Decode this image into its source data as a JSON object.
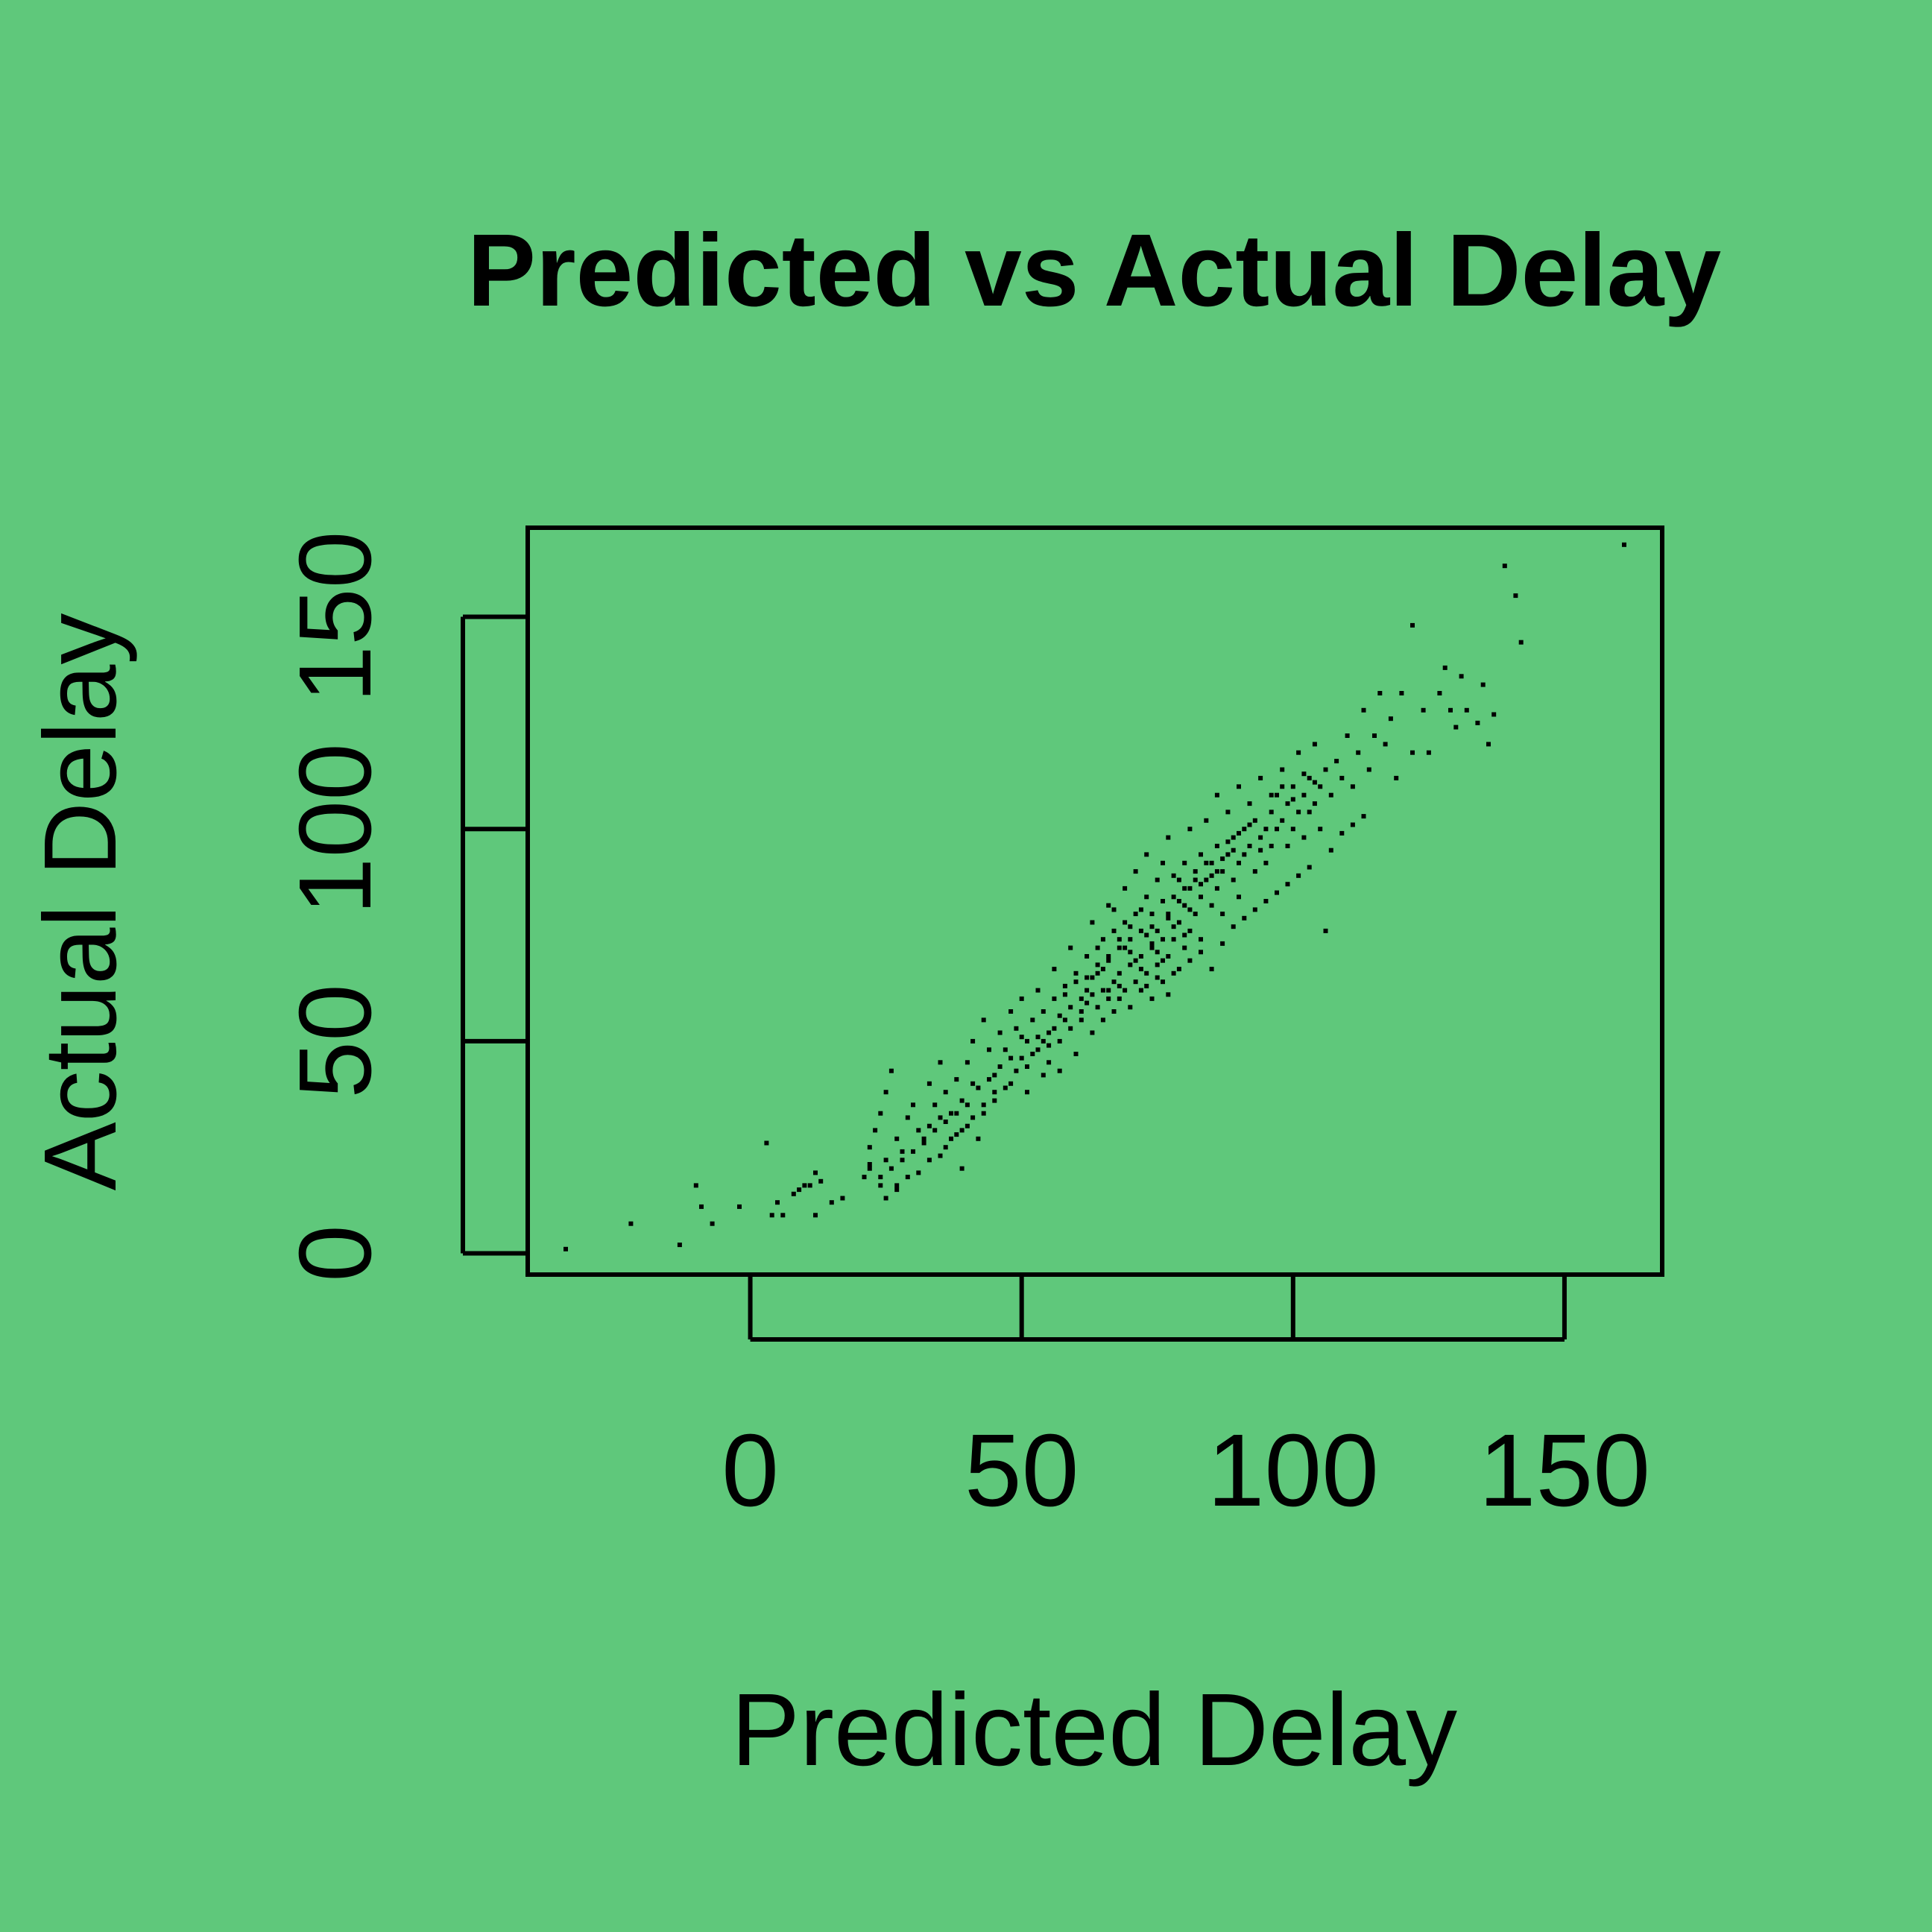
{
  "chart_data": {
    "type": "scatter",
    "title": "Predicted vs Actual Delay",
    "xlabel": "Predicted Delay",
    "ylabel": "Actual Delay",
    "xlim": [
      -41,
      168
    ],
    "ylim": [
      -5,
      171
    ],
    "xticks": [
      0,
      50,
      100,
      150
    ],
    "yticks": [
      0,
      50,
      100,
      150
    ],
    "xtick_labels": [
      "0",
      "50",
      "100",
      "150"
    ],
    "ytick_labels": [
      "0",
      "50",
      "100",
      "150"
    ],
    "grid": false,
    "legend": "none",
    "marker_color": "#000000",
    "background_color": "#5fc87b",
    "points": [
      [
        -34,
        1
      ],
      [
        -22,
        7
      ],
      [
        -13,
        2
      ],
      [
        -10,
        16
      ],
      [
        -9,
        11
      ],
      [
        -7,
        7
      ],
      [
        -2,
        11
      ],
      [
        3,
        26
      ],
      [
        4,
        9
      ],
      [
        5,
        12
      ],
      [
        6,
        9
      ],
      [
        8,
        14
      ],
      [
        9,
        15
      ],
      [
        10,
        16
      ],
      [
        11,
        16
      ],
      [
        12,
        19
      ],
      [
        12,
        9
      ],
      [
        13,
        17
      ],
      [
        15,
        12
      ],
      [
        17,
        13
      ],
      [
        21,
        18
      ],
      [
        22,
        21
      ],
      [
        22,
        25
      ],
      [
        23,
        29
      ],
      [
        24,
        33
      ],
      [
        24,
        18
      ],
      [
        25,
        22
      ],
      [
        25,
        13
      ],
      [
        25,
        38
      ],
      [
        26,
        43
      ],
      [
        27,
        27
      ],
      [
        27,
        15
      ],
      [
        28,
        24
      ],
      [
        29,
        32
      ],
      [
        30,
        35
      ],
      [
        31,
        29
      ],
      [
        32,
        26
      ],
      [
        33,
        30
      ],
      [
        33,
        40
      ],
      [
        34,
        35
      ],
      [
        35,
        32
      ],
      [
        35,
        45
      ],
      [
        36,
        38
      ],
      [
        36,
        25
      ],
      [
        37,
        33
      ],
      [
        38,
        41
      ],
      [
        38,
        28
      ],
      [
        39,
        36
      ],
      [
        39,
        20
      ],
      [
        40,
        30
      ],
      [
        40,
        45
      ],
      [
        41,
        50
      ],
      [
        41,
        40
      ],
      [
        42,
        27
      ],
      [
        43,
        35
      ],
      [
        43,
        55
      ],
      [
        44,
        48
      ],
      [
        45,
        42
      ],
      [
        45,
        38
      ],
      [
        46,
        52
      ],
      [
        47,
        48
      ],
      [
        48,
        40
      ],
      [
        48,
        57
      ],
      [
        49,
        53
      ],
      [
        50,
        46
      ],
      [
        50,
        60
      ],
      [
        51,
        50
      ],
      [
        51,
        38
      ],
      [
        52,
        55
      ],
      [
        53,
        48
      ],
      [
        53,
        62
      ],
      [
        54,
        42
      ],
      [
        54,
        57
      ],
      [
        55,
        52
      ],
      [
        55,
        45
      ],
      [
        56,
        60
      ],
      [
        56,
        67
      ],
      [
        57,
        50
      ],
      [
        57,
        43
      ],
      [
        58,
        55
      ],
      [
        58,
        63
      ],
      [
        59,
        58
      ],
      [
        59,
        72
      ],
      [
        60,
        47
      ],
      [
        60,
        66
      ],
      [
        61,
        55
      ],
      [
        61,
        60
      ],
      [
        62,
        62
      ],
      [
        62,
        70
      ],
      [
        63,
        52
      ],
      [
        63,
        65
      ],
      [
        63,
        78
      ],
      [
        64,
        58
      ],
      [
        64,
        68
      ],
      [
        65,
        62
      ],
      [
        65,
        55
      ],
      [
        65,
        74
      ],
      [
        66,
        60
      ],
      [
        66,
        70
      ],
      [
        66,
        82
      ],
      [
        67,
        64
      ],
      [
        67,
        57
      ],
      [
        67,
        76
      ],
      [
        68,
        66
      ],
      [
        68,
        72
      ],
      [
        68,
        60
      ],
      [
        69,
        62
      ],
      [
        69,
        78
      ],
      [
        69,
        86
      ],
      [
        70,
        68
      ],
      [
        70,
        74
      ],
      [
        70,
        58
      ],
      [
        71,
        64
      ],
      [
        71,
        80
      ],
      [
        71,
        90
      ],
      [
        72,
        70
      ],
      [
        72,
        62
      ],
      [
        72,
        76
      ],
      [
        73,
        66
      ],
      [
        73,
        84
      ],
      [
        73,
        94
      ],
      [
        74,
        72
      ],
      [
        74,
        60
      ],
      [
        74,
        80
      ],
      [
        75,
        68
      ],
      [
        75,
        88
      ],
      [
        75,
        76
      ],
      [
        76,
        74
      ],
      [
        76,
        64
      ],
      [
        76,
        92
      ],
      [
        77,
        80
      ],
      [
        77,
        70
      ],
      [
        77,
        98
      ],
      [
        78,
        84
      ],
      [
        78,
        74
      ],
      [
        78,
        66
      ],
      [
        79,
        88
      ],
      [
        79,
        78
      ],
      [
        80,
        82
      ],
      [
        80,
        92
      ],
      [
        80,
        72
      ],
      [
        81,
        86
      ],
      [
        81,
        76
      ],
      [
        81,
        100
      ],
      [
        82,
        90
      ],
      [
        82,
        80
      ],
      [
        83,
        84
      ],
      [
        83,
        94
      ],
      [
        83,
        74
      ],
      [
        84,
        88
      ],
      [
        84,
        102
      ],
      [
        85,
        82
      ],
      [
        85,
        92
      ],
      [
        86,
        96
      ],
      [
        86,
        86
      ],
      [
        86,
        108
      ],
      [
        87,
        90
      ],
      [
        87,
        80
      ],
      [
        88,
        94
      ],
      [
        88,
        104
      ],
      [
        89,
        88
      ],
      [
        89,
        98
      ],
      [
        90,
        92
      ],
      [
        90,
        84
      ],
      [
        90,
        110
      ],
      [
        91,
        100
      ],
      [
        91,
        94
      ],
      [
        92,
        96
      ],
      [
        92,
        106
      ],
      [
        93,
        90
      ],
      [
        93,
        102
      ],
      [
        94,
        98
      ],
      [
        94,
        112
      ],
      [
        95,
        100
      ],
      [
        95,
        92
      ],
      [
        96,
        104
      ],
      [
        96,
        96
      ],
      [
        97,
        108
      ],
      [
        97,
        100
      ],
      [
        98,
        102
      ],
      [
        98,
        114
      ],
      [
        99,
        106
      ],
      [
        99,
        96
      ],
      [
        100,
        110
      ],
      [
        100,
        100
      ],
      [
        101,
        104
      ],
      [
        101,
        118
      ],
      [
        102,
        108
      ],
      [
        102,
        98
      ],
      [
        103,
        112
      ],
      [
        103,
        104
      ],
      [
        104,
        106
      ],
      [
        104,
        120
      ],
      [
        105,
        110
      ],
      [
        105,
        100
      ],
      [
        106,
        114
      ],
      [
        106,
        76
      ],
      [
        107,
        108
      ],
      [
        108,
        116
      ],
      [
        109,
        112
      ],
      [
        110,
        122
      ],
      [
        111,
        110
      ],
      [
        112,
        118
      ],
      [
        113,
        128
      ],
      [
        114,
        114
      ],
      [
        115,
        122
      ],
      [
        116,
        132
      ],
      [
        117,
        120
      ],
      [
        118,
        126
      ],
      [
        119,
        112
      ],
      [
        120,
        132
      ],
      [
        122,
        118
      ],
      [
        122,
        148
      ],
      [
        124,
        128
      ],
      [
        125,
        118
      ],
      [
        127,
        132
      ],
      [
        128,
        138
      ],
      [
        129,
        128
      ],
      [
        130,
        124
      ],
      [
        131,
        136
      ],
      [
        132,
        128
      ],
      [
        134,
        125
      ],
      [
        135,
        134
      ],
      [
        136,
        120
      ],
      [
        137,
        127
      ],
      [
        139,
        162
      ],
      [
        141,
        155
      ],
      [
        142,
        144
      ],
      [
        161,
        167
      ],
      [
        62,
        65
      ],
      [
        64,
        72
      ],
      [
        66,
        69
      ],
      [
        68,
        63
      ],
      [
        70,
        71
      ],
      [
        72,
        67
      ],
      [
        74,
        73
      ],
      [
        76,
        69
      ],
      [
        78,
        77
      ],
      [
        80,
        75
      ],
      [
        58,
        61
      ],
      [
        60,
        64
      ],
      [
        62,
        59
      ],
      [
        64,
        66
      ],
      [
        66,
        62
      ],
      [
        68,
        74
      ],
      [
        70,
        77
      ],
      [
        72,
        81
      ],
      [
        74,
        77
      ],
      [
        76,
        83
      ],
      [
        78,
        89
      ],
      [
        80,
        86
      ],
      [
        82,
        88
      ],
      [
        84,
        92
      ],
      [
        86,
        90
      ],
      [
        88,
        97
      ],
      [
        90,
        99
      ],
      [
        92,
        101
      ],
      [
        94,
        95
      ],
      [
        96,
        108
      ],
      [
        98,
        110
      ],
      [
        100,
        107
      ],
      [
        102,
        113
      ],
      [
        104,
        111
      ],
      [
        54,
        50
      ],
      [
        56,
        53
      ],
      [
        52,
        47
      ],
      [
        50,
        51
      ],
      [
        48,
        46
      ],
      [
        46,
        44
      ],
      [
        44,
        41
      ],
      [
        42,
        39
      ],
      [
        40,
        35
      ],
      [
        38,
        33
      ],
      [
        36,
        31
      ],
      [
        34,
        29
      ],
      [
        32,
        27
      ],
      [
        30,
        24
      ],
      [
        28,
        22
      ],
      [
        26,
        20
      ],
      [
        24,
        16
      ],
      [
        22,
        20
      ],
      [
        67,
        81
      ],
      [
        69,
        72
      ],
      [
        71,
        69
      ],
      [
        73,
        75
      ],
      [
        75,
        71
      ],
      [
        77,
        79
      ],
      [
        79,
        83
      ],
      [
        81,
        81
      ],
      [
        83,
        87
      ],
      [
        85,
        89
      ],
      [
        87,
        93
      ],
      [
        89,
        95
      ],
      [
        65,
        67
      ],
      [
        63,
        61
      ],
      [
        61,
        57
      ],
      [
        59,
        53
      ],
      [
        57,
        56
      ],
      [
        55,
        49
      ],
      [
        53,
        51
      ],
      [
        51,
        44
      ],
      [
        49,
        43
      ],
      [
        47,
        39
      ],
      [
        45,
        36
      ],
      [
        43,
        33
      ],
      [
        41,
        32
      ],
      [
        39,
        29
      ],
      [
        37,
        27
      ],
      [
        35,
        23
      ],
      [
        33,
        22
      ],
      [
        31,
        19
      ],
      [
        29,
        18
      ],
      [
        27,
        16
      ],
      [
        73,
        63
      ],
      [
        75,
        65
      ],
      [
        77,
        61
      ],
      [
        79,
        67
      ],
      [
        81,
        69
      ],
      [
        83,
        71
      ],
      [
        85,
        67
      ],
      [
        87,
        73
      ],
      [
        89,
        77
      ],
      [
        91,
        79
      ],
      [
        93,
        81
      ],
      [
        95,
        83
      ],
      [
        97,
        85
      ],
      [
        99,
        87
      ],
      [
        101,
        89
      ],
      [
        103,
        91
      ],
      [
        107,
        95
      ],
      [
        109,
        99
      ],
      [
        111,
        101
      ],
      [
        113,
        103
      ]
    ]
  }
}
